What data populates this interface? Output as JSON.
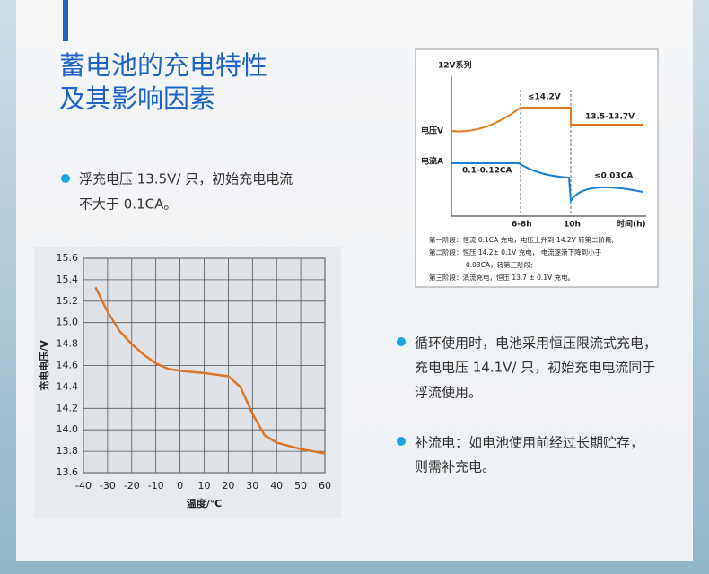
{
  "header": {
    "title_lines": [
      "蓄电池的充电特性",
      "及其影响因素"
    ]
  },
  "bullets": [
    {
      "lines": [
        "浮充电压 13.5V/ 只，初始充电电流",
        "不大于 0.1CA。"
      ]
    },
    {
      "lines": [
        "循环使用时，电池采用恒压限流式充电，",
        "充电电压 14.1V/ 只，初始充电电流同于",
        "浮流使用。"
      ]
    },
    {
      "lines": [
        "补流电：如电池使用前经过长期贮存，",
        "则需补充电。"
      ]
    }
  ],
  "diagram": {
    "series_label": "12V系列",
    "voltage_label": "电压V",
    "current_label": "电流A",
    "v_high": "≤14.2V",
    "v_float": "13.5-13.7V",
    "i_start": "0.1-0.12CA",
    "i_end": "≤0.03CA",
    "t1": "6-8h",
    "t2": "10h",
    "x_label": "时间(h)",
    "notes": [
      "第一阶段：恒流 0.1CA 充电，电压上升到 14.2V 转第二阶段;",
      "第二阶段：恒压 14.2± 0.1V 充电， 电流逐渐下降到小于",
      "0.03CA，转第三阶段;",
      "第三阶段：涓流充电，恒压 13.7 ± 0.1V 充电。"
    ]
  },
  "chart_data": {
    "type": "line",
    "xlabel": "温度/℃",
    "ylabel": "充电电压/V",
    "x": [
      -35,
      -30,
      -25,
      -20,
      -15,
      -10,
      -5,
      0,
      10,
      20,
      25,
      30,
      35,
      40,
      50,
      60
    ],
    "series": [
      {
        "color": "#d9762a",
        "values": [
          15.33,
          15.1,
          14.92,
          14.8,
          14.7,
          14.62,
          14.57,
          14.55,
          14.53,
          14.5,
          14.4,
          14.15,
          13.95,
          13.88,
          13.82,
          13.78
        ]
      }
    ],
    "xlim": [
      -40,
      60
    ],
    "xticks": [
      -40,
      -30,
      -20,
      -10,
      0,
      10,
      20,
      30,
      40,
      50,
      60
    ],
    "ylim": [
      13.6,
      15.6
    ],
    "yticks": [
      13.6,
      13.8,
      {
        "value": 14,
        "label": "14.0"
      },
      14.2,
      14.4,
      14.6,
      14.8,
      {
        "value": 15,
        "label": "15.0"
      },
      15.2,
      15.4,
      15.6
    ],
    "grid": true
  }
}
